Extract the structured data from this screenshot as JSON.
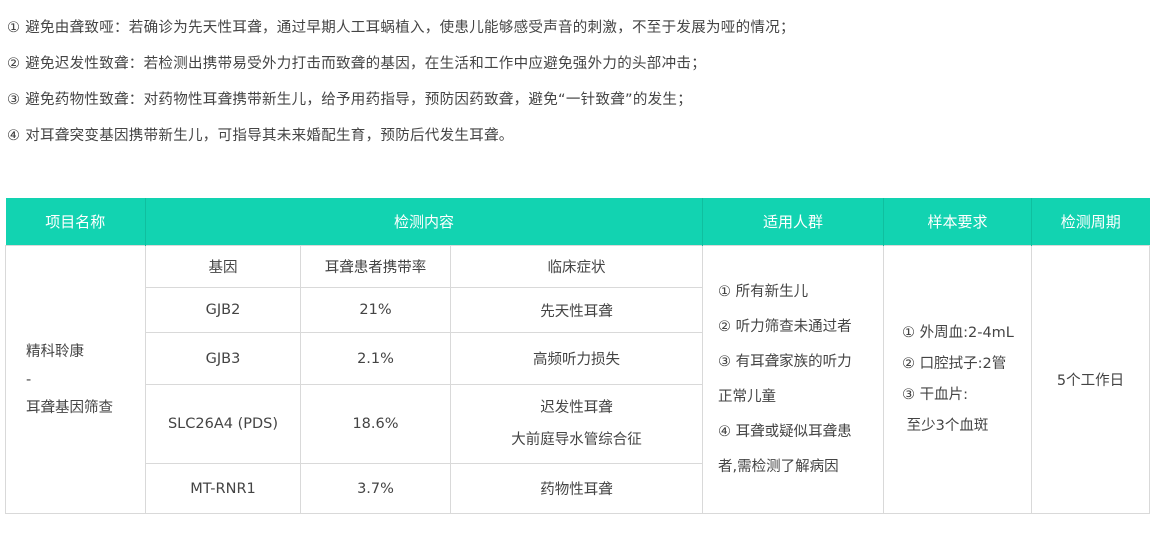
{
  "intro": [
    "① 避免由聋致哑：若确诊为先天性耳聋，通过早期人工耳蜗植入，使患儿能够感受声音的刺激，不至于发展为哑的情况；",
    "② 避免迟发性致聋：若检测出携带易受外力打击而致聋的基因，在生活和工作中应避免强外力的头部冲击；",
    "③ 避免药物性致聋：对药物性耳聋携带新生儿，给予用药指导，预防因药致聋，避免“一针致聋”的发生；",
    "④ 对耳聋突变基因携带新生儿，可指导其未来婚配生育，预防后代发生耳聋。"
  ],
  "table": {
    "headers": [
      "项目名称",
      "检测内容",
      "适用人群",
      "样本要求",
      "检测周期"
    ],
    "sub_headers": [
      "基因",
      "耳聋患者携带率",
      "临床症状"
    ],
    "project": [
      "精科聆康",
      "-",
      "耳聋基因筛查"
    ],
    "rows": [
      {
        "gene": "GJB2",
        "rate": "21%",
        "symptom": [
          "先天性耳聋"
        ]
      },
      {
        "gene": "GJB3",
        "rate": "2.1%",
        "symptom": [
          "高频听力损失"
        ]
      },
      {
        "gene": "SLC26A4 (PDS)",
        "rate": "18.6%",
        "symptom": [
          "迟发性耳聋",
          "大前庭导水管综合征"
        ]
      },
      {
        "gene": "MT-RNR1",
        "rate": "3.7%",
        "symptom": [
          "药物性耳聋"
        ]
      }
    ],
    "population": [
      "① 所有新生儿",
      "② 听力筛查未通过者",
      "③ 有耳聋家族的听力",
      "正常儿童",
      "④ 耳聋或疑似耳聋患",
      "者,需检测了解病因"
    ],
    "sample": [
      "① 外周血:2-4mL",
      "② 口腔拭子:2管",
      "③ 干血片:",
      " 至少3个血斑"
    ],
    "period": "5个工作日"
  },
  "colors": {
    "header_bg": "#12d3b1",
    "border": "#d9d9d9"
  }
}
